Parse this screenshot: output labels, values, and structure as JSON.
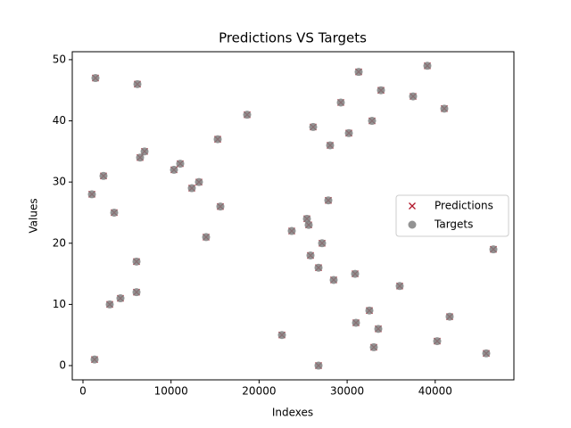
{
  "chart_data": {
    "type": "scatter",
    "title": "Predictions VS Targets",
    "x_label": "Indexes",
    "y_label": "Values",
    "x": [
      1418,
      6180,
      1317,
      1013,
      2330,
      3546,
      3040,
      4255,
      6079,
      6079,
      6484,
      6991,
      10334,
      11043,
      12361,
      13171,
      13982,
      15299,
      15603,
      18642,
      22594,
      23708,
      25431,
      25633,
      25836,
      26140,
      26748,
      26748,
      27153,
      27862,
      28065,
      28470,
      29281,
      30193,
      30902,
      31003,
      31307,
      32523,
      32827,
      33029,
      33536,
      33840,
      35968,
      37487,
      39108,
      40223,
      41033,
      41641,
      45795,
      46606
    ],
    "series": [
      {
        "name": "Predictions",
        "color": "#b2182b",
        "marker": "x",
        "values": [
          47,
          46,
          1,
          28,
          31,
          25,
          10,
          11,
          17,
          12,
          34,
          35,
          32,
          33,
          29,
          30,
          21,
          37,
          26,
          41,
          5,
          22,
          24,
          23,
          18,
          39,
          16,
          0,
          20,
          27,
          36,
          14,
          43,
          38,
          15,
          7,
          48,
          9,
          40,
          3,
          6,
          45,
          13,
          44,
          49,
          4,
          42,
          8,
          2,
          19
        ]
      },
      {
        "name": "Targets",
        "color": "#808080",
        "marker": "o",
        "values": [
          47,
          46,
          1,
          28,
          31,
          25,
          10,
          11,
          17,
          12,
          34,
          35,
          32,
          33,
          29,
          30,
          21,
          37,
          26,
          41,
          5,
          22,
          24,
          23,
          18,
          39,
          16,
          0,
          20,
          27,
          36,
          14,
          43,
          38,
          15,
          7,
          48,
          9,
          40,
          3,
          6,
          45,
          13,
          44,
          49,
          4,
          42,
          8,
          2,
          19
        ]
      }
    ],
    "xlim": [
      -1216,
      48936
    ],
    "ylim": [
      -2.33,
      51.3
    ],
    "xticks": [
      0,
      10000,
      20000,
      30000,
      40000
    ],
    "yticks": [
      0,
      10,
      20,
      30,
      40,
      50
    ],
    "legend": "right"
  }
}
